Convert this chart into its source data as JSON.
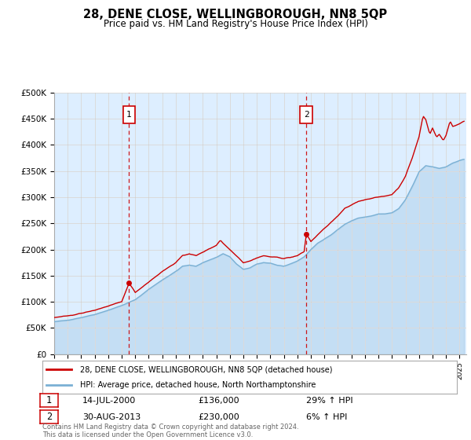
{
  "title": "28, DENE CLOSE, WELLINGBOROUGH, NN8 5QP",
  "subtitle": "Price paid vs. HM Land Registry's House Price Index (HPI)",
  "ylabel_ticks": [
    "£0",
    "£50K",
    "£100K",
    "£150K",
    "£200K",
    "£250K",
    "£300K",
    "£350K",
    "£400K",
    "£450K",
    "£500K"
  ],
  "ytick_values": [
    0,
    50000,
    100000,
    150000,
    200000,
    250000,
    300000,
    350000,
    400000,
    450000,
    500000
  ],
  "ylim": [
    0,
    500000
  ],
  "xlim_start": 1995.0,
  "xlim_end": 2025.5,
  "sale1_x": 2000.54,
  "sale1_y": 136000,
  "sale2_x": 2013.66,
  "sale2_y": 230000,
  "legend_line1": "28, DENE CLOSE, WELLINGBOROUGH, NN8 5QP (detached house)",
  "legend_line2": "HPI: Average price, detached house, North Northamptonshire",
  "ann1_date": "14-JUL-2000",
  "ann1_price": "£136,000",
  "ann1_hpi": "29% ↑ HPI",
  "ann2_date": "30-AUG-2013",
  "ann2_price": "£230,000",
  "ann2_hpi": "6% ↑ HPI",
  "footer": "Contains HM Land Registry data © Crown copyright and database right 2024.\nThis data is licensed under the Open Government Licence v3.0.",
  "line_color_red": "#cc0000",
  "line_color_blue": "#7ab0d4",
  "bg_color": "#ddeeff",
  "marker_color": "#cc0000"
}
